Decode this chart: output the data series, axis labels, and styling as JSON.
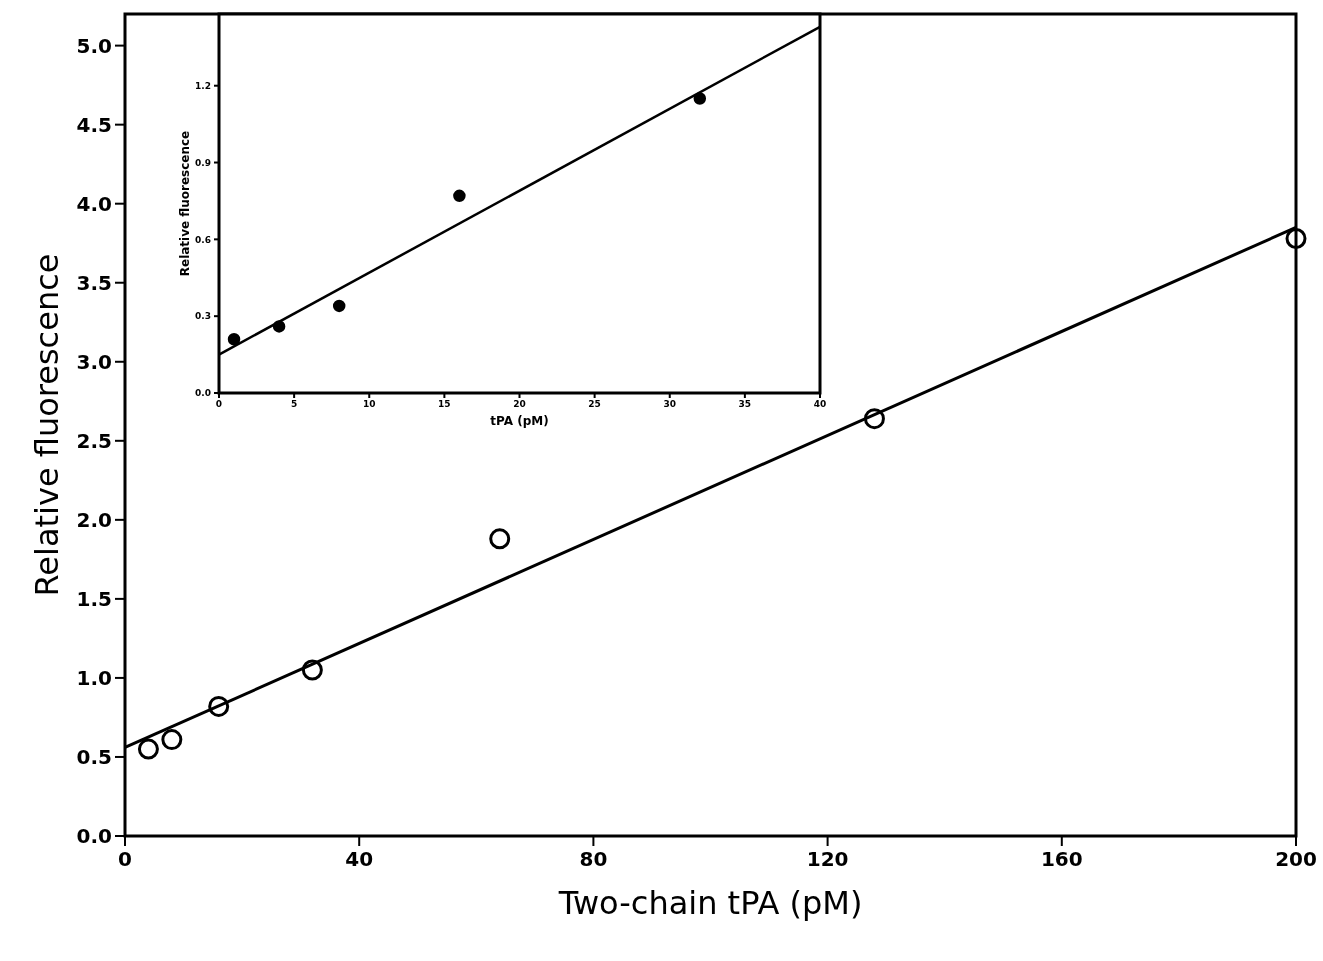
{
  "chart_data": [
    {
      "type": "scatter",
      "xlabel": "Two-chain tPA (pM)",
      "ylabel": "Relative fluorescence",
      "xlim": [
        0,
        200
      ],
      "ylim": [
        0,
        5.2
      ],
      "xticks": [
        0,
        40,
        80,
        120,
        160,
        200
      ],
      "yticks": [
        {
          "value": 0,
          "label": "0.0"
        },
        {
          "value": 0.5,
          "label": "0.5"
        },
        {
          "value": 1,
          "label": "1.0"
        },
        {
          "value": 1.5,
          "label": "1.5"
        },
        {
          "value": 2,
          "label": "2.0"
        },
        {
          "value": 2.5,
          "label": "2.5"
        },
        {
          "value": 3,
          "label": "3.0"
        },
        {
          "value": 3.5,
          "label": "3.5"
        },
        {
          "value": 4,
          "label": "4.0"
        },
        {
          "value": 4.5,
          "label": "4.5"
        },
        {
          "value": 5,
          "label": "5.0"
        }
      ],
      "series": [
        {
          "marker": "circle",
          "color": "#000000",
          "x": [
            4,
            8,
            16,
            32,
            64,
            128,
            200
          ],
          "values": [
            0.55,
            0.61,
            0.82,
            1.05,
            1.88,
            2.64,
            3.78
          ]
        },
        {
          "type": "line",
          "color": "#000000",
          "x": [
            0,
            200
          ],
          "values": [
            0.56,
            3.85
          ]
        }
      ]
    },
    {
      "type": "scatter",
      "xlabel": "tPA (pM)",
      "ylabel": "Relative fluorescence",
      "xlim": [
        0,
        40
      ],
      "ylim": [
        0,
        1.48
      ],
      "xticks": [
        0,
        5,
        10,
        15,
        20,
        25,
        30,
        35,
        40
      ],
      "yticks": [
        {
          "value": 0,
          "label": "0.0"
        },
        {
          "value": 0.3,
          "label": "0.3"
        },
        {
          "value": 0.6,
          "label": "0.6"
        },
        {
          "value": 0.9,
          "label": "0.9"
        },
        {
          "value": 1.2,
          "label": "1.2"
        }
      ],
      "series": [
        {
          "marker": "circle",
          "color": "#000000",
          "x": [
            1,
            4,
            8,
            16,
            32
          ],
          "values": [
            0.21,
            0.26,
            0.34,
            0.77,
            1.15
          ]
        },
        {
          "type": "line",
          "color": "#000000",
          "x": [
            0,
            40
          ],
          "values": [
            0.15,
            1.43
          ]
        }
      ]
    }
  ]
}
